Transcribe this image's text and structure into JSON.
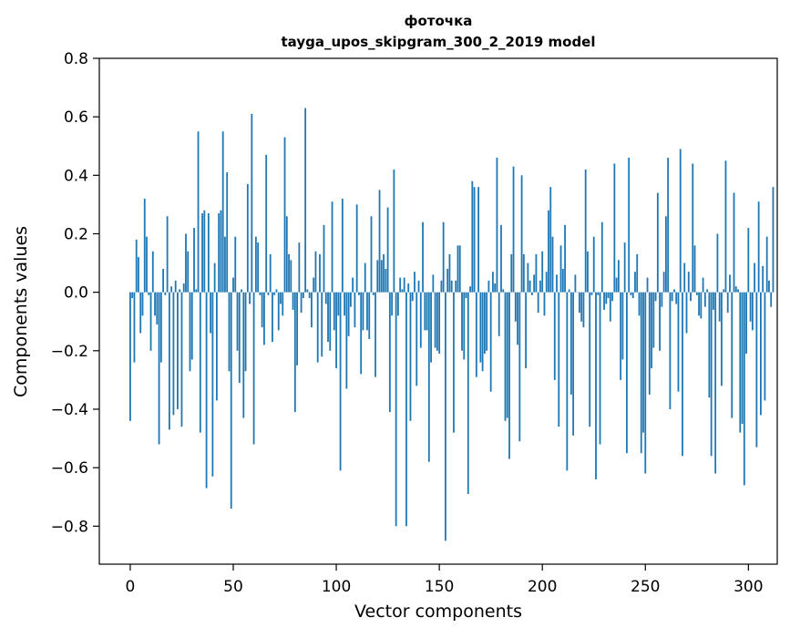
{
  "chart_data": {
    "type": "bar",
    "title": "фоточка",
    "subtitle": "tayga_upos_skipgram_300_2_2019 model",
    "xlabel": "Vector components",
    "ylabel": "Components values",
    "xlim": [
      -15,
      314
    ],
    "ylim": [
      -0.93,
      0.8
    ],
    "xticks": [
      0,
      50,
      100,
      150,
      200,
      250,
      300
    ],
    "yticks": [
      -0.8,
      -0.6,
      -0.4,
      -0.2,
      0.0,
      0.2,
      0.4,
      0.6,
      0.8
    ],
    "xtick_labels": [
      "0",
      "50",
      "100",
      "150",
      "200",
      "250",
      "300"
    ],
    "ytick_labels": [
      "−0.8",
      "−0.6",
      "−0.4",
      "−0.2",
      "0.0",
      "0.2",
      "0.4",
      "0.6",
      "0.8"
    ],
    "grid": false,
    "color": "#1f77b4",
    "values": [
      -0.44,
      -0.02,
      -0.24,
      0.18,
      0.12,
      -0.14,
      -0.08,
      0.32,
      0.19,
      -0.01,
      -0.2,
      0.14,
      -0.08,
      -0.11,
      -0.52,
      -0.24,
      0.08,
      -0.01,
      0.26,
      -0.47,
      0.02,
      -0.42,
      0.04,
      -0.4,
      0.01,
      -0.46,
      0.03,
      0.2,
      0.14,
      -0.27,
      -0.23,
      0.22,
      0.01,
      0.55,
      -0.48,
      0.27,
      0.28,
      -0.67,
      0.27,
      -0.14,
      -0.63,
      0.1,
      -0.37,
      0.27,
      0.28,
      0.55,
      0.19,
      0.41,
      -0.27,
      -0.74,
      0.05,
      0.19,
      -0.2,
      -0.31,
      0.01,
      -0.43,
      -0.27,
      0.37,
      -0.04,
      0.61,
      -0.52,
      0.19,
      0.17,
      -0.01,
      -0.12,
      -0.18,
      0.47,
      -0.01,
      0.13,
      -0.17,
      -0.01,
      0.01,
      -0.13,
      -0.04,
      -0.08,
      0.53,
      0.26,
      0.13,
      0.11,
      -0.06,
      -0.41,
      -0.25,
      0.17,
      -0.07,
      -0.02,
      0.63,
      0.01,
      -0.02,
      -0.12,
      0.05,
      0.14,
      -0.24,
      0.13,
      -0.22,
      0.23,
      -0.04,
      -0.17,
      -0.2,
      0.31,
      -0.13,
      -0.26,
      -0.08,
      -0.61,
      0.32,
      -0.08,
      -0.33,
      -0.15,
      -0.05,
      0.05,
      -0.12,
      0.3,
      -0.01,
      -0.28,
      -0.13,
      0.1,
      -0.13,
      -0.16,
      0.26,
      -0.01,
      -0.29,
      0.11,
      0.35,
      0.11,
      0.13,
      0.08,
      0.29,
      -0.41,
      -0.08,
      0.42,
      -0.8,
      -0.08,
      0.05,
      0.01,
      0.05,
      -0.8,
      0.03,
      -0.44,
      -0.03,
      0.07,
      -0.32,
      0.04,
      -0.19,
      0.24,
      -0.13,
      -0.13,
      -0.58,
      -0.24,
      0.06,
      -0.19,
      -0.2,
      -0.21,
      0.04,
      0.24,
      -0.85,
      0.08,
      0.13,
      0.04,
      -0.48,
      0.04,
      0.16,
      0.16,
      -0.2,
      -0.23,
      -0.02,
      -0.69,
      0.02,
      0.38,
      0.36,
      -0.29,
      0.36,
      -0.24,
      -0.27,
      -0.21,
      -0.2,
      0.04,
      -0.34,
      0.07,
      0.03,
      0.46,
      -0.15,
      0.23,
      0.01,
      -0.44,
      -0.43,
      -0.57,
      0.13,
      0.43,
      -0.1,
      -0.18,
      -0.51,
      0.4,
      0.13,
      -0.26,
      0.1,
      0.04,
      -0.01,
      0.06,
      0.13,
      -0.07,
      0.04,
      0.14,
      -0.08,
      0.07,
      0.28,
      0.36,
      0.19,
      -0.3,
      0.06,
      -0.46,
      0.16,
      0.08,
      0.23,
      -0.61,
      0.01,
      -0.35,
      -0.49,
      0.06,
      0.0,
      -0.07,
      -0.1,
      -0.12,
      0.42,
      0.14,
      -0.46,
      -0.01,
      0.19,
      -0.64,
      -0.01,
      -0.52,
      0.24,
      -0.06,
      -0.04,
      -0.02,
      -0.1,
      -0.03,
      0.44,
      0.05,
      0.11,
      -0.3,
      -0.23,
      0.17,
      -0.55,
      0.46,
      -0.01,
      -0.02,
      0.07,
      0.13,
      -0.08,
      -0.55,
      -0.48,
      -0.62,
      0.05,
      -0.35,
      -0.26,
      -0.19,
      -0.03,
      0.34,
      -0.2,
      -0.05,
      0.07,
      0.26,
      0.46,
      -0.4,
      -0.03,
      0.01,
      -0.04,
      -0.34,
      0.49,
      -0.56,
      0.1,
      -0.14,
      0.07,
      -0.03,
      0.44,
      0.16,
      -0.01,
      -0.08,
      -0.09,
      0.05,
      -0.05,
      0.01,
      -0.36,
      -0.56,
      -0.06,
      -0.62,
      0.2,
      -0.1,
      -0.32,
      0.01,
      0.45,
      -0.07,
      0.06,
      -0.43,
      0.34,
      0.02,
      0.01,
      -0.48,
      -0.45,
      -0.66,
      -0.21,
      0.22,
      -0.1,
      -0.13,
      0.1,
      -0.53,
      0.31,
      -0.42,
      0.09,
      -0.37,
      0.19,
      0.04,
      -0.05,
      0.36
    ]
  }
}
